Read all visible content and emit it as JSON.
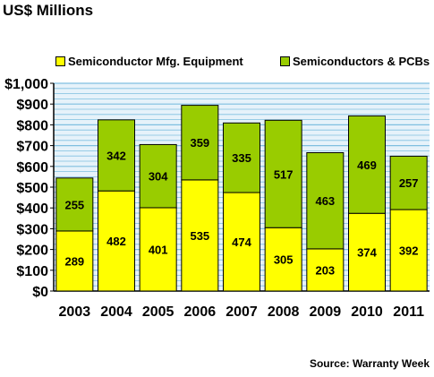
{
  "title": "US$ Millions",
  "source": "Source: Warranty Week",
  "legend": [
    {
      "label": "Semiconductor Mfg. Equipment",
      "color": "#ffff00"
    },
    {
      "label": "Semiconductors & PCBs",
      "color": "#99cc00"
    }
  ],
  "chart_data": {
    "type": "bar",
    "stacked": true,
    "categories": [
      "2003",
      "2004",
      "2005",
      "2006",
      "2007",
      "2008",
      "2009",
      "2010",
      "2011"
    ],
    "series": [
      {
        "name": "Semiconductor Mfg. Equipment",
        "color": "#ffff00",
        "values": [
          289,
          482,
          401,
          535,
          474,
          305,
          203,
          374,
          392
        ]
      },
      {
        "name": "Semiconductors & PCBs",
        "color": "#99cc00",
        "values": [
          255,
          342,
          304,
          359,
          335,
          517,
          463,
          469,
          257
        ]
      }
    ],
    "yticks": [
      "$0",
      "$100",
      "$200",
      "$300",
      "$400",
      "$500",
      "$600",
      "$700",
      "$800",
      "$900",
      "$1,000"
    ],
    "ylim": [
      0,
      1000
    ],
    "ytick_step": 100,
    "grid": true,
    "plot_background": "#e6f2fa",
    "gridline_color": "#7fbfe0",
    "legend_position": "top"
  }
}
